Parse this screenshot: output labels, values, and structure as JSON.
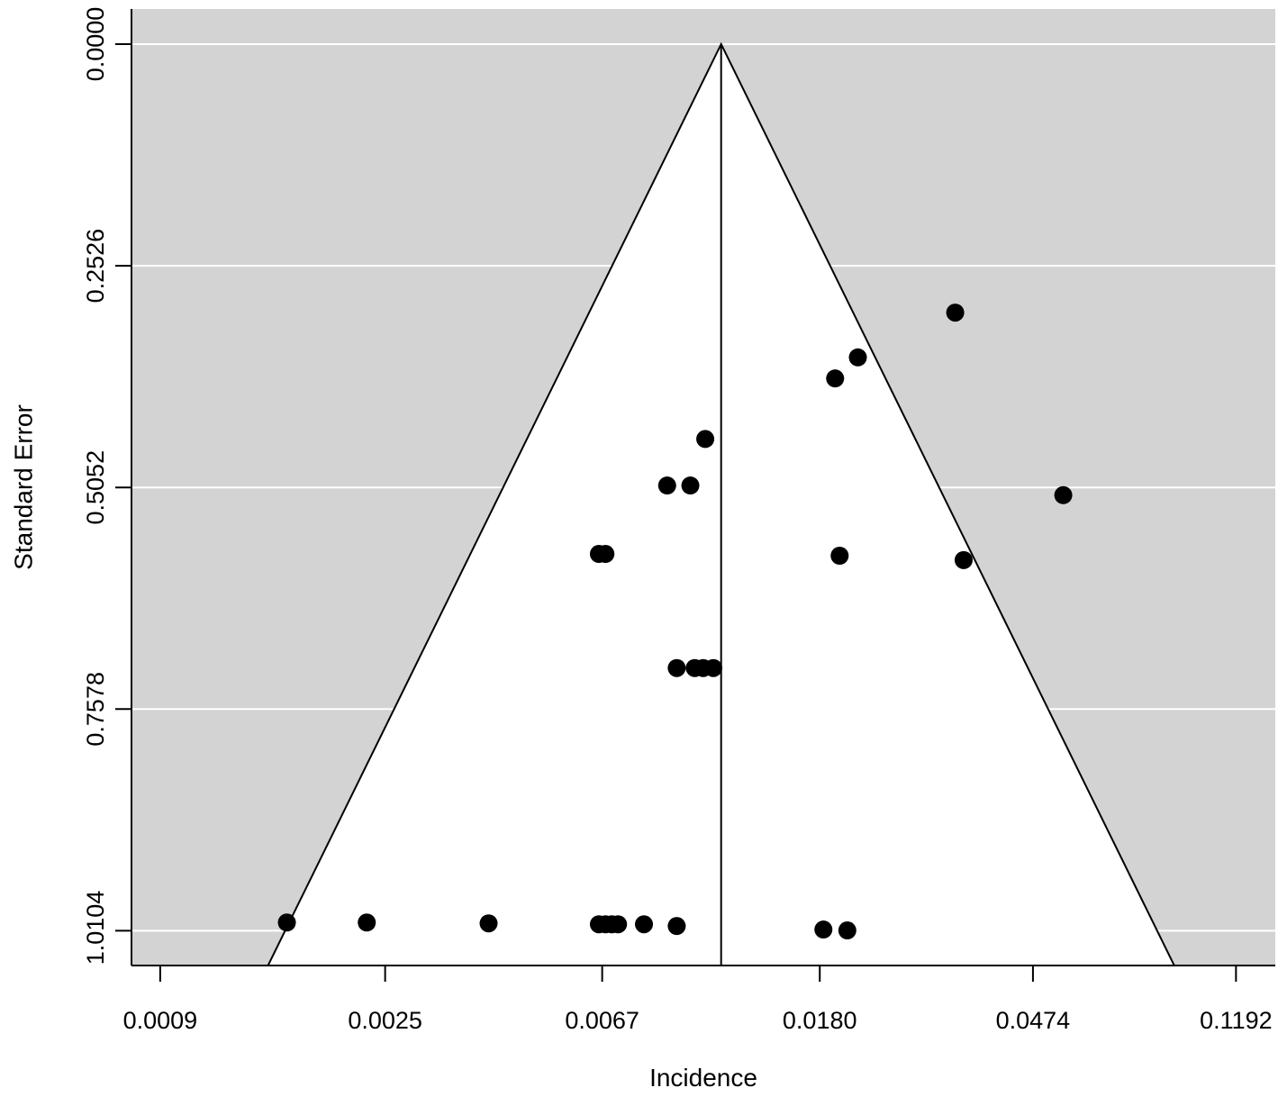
{
  "chart_data": {
    "type": "scatter",
    "subtype": "funnel",
    "title": "",
    "xlabel": "Incidence",
    "ylabel": "Standard Error",
    "x_scale": "log",
    "y_reversed": true,
    "x_ticks": [
      "0.0009",
      "0.0025",
      "0.0067",
      "0.0180",
      "0.0474",
      "0.1192"
    ],
    "x_tick_values": [
      0.0009,
      0.0025,
      0.0067,
      0.018,
      0.0474,
      0.1192
    ],
    "y_ticks": [
      "0.0000",
      "0.2526",
      "0.5052",
      "0.7578",
      "1.0104"
    ],
    "y_tick_values": [
      0,
      0.2526,
      0.5052,
      0.7578,
      1.0104
    ],
    "xlim": [
      0.00079,
      0.1425
    ],
    "ylim": [
      1.05,
      -0.04
    ],
    "pooled_estimate": 0.0115,
    "funnel_z": 1.96,
    "background_color": "#d3d3d3",
    "funnel_color": "#ffffff",
    "gridline_color": "#ffffff",
    "point_color": "#000000",
    "points": [
      {
        "x": 0.0333,
        "se": 0.306
      },
      {
        "x": 0.0214,
        "se": 0.357
      },
      {
        "x": 0.0193,
        "se": 0.381
      },
      {
        "x": 0.0107,
        "se": 0.45
      },
      {
        "x": 0.009,
        "se": 0.503
      },
      {
        "x": 0.01,
        "se": 0.503
      },
      {
        "x": 0.0544,
        "se": 0.514
      },
      {
        "x": 0.0066,
        "se": 0.581
      },
      {
        "x": 0.0068,
        "se": 0.581
      },
      {
        "x": 0.0197,
        "se": 0.583
      },
      {
        "x": 0.0346,
        "se": 0.588
      },
      {
        "x": 0.0094,
        "se": 0.711
      },
      {
        "x": 0.0102,
        "se": 0.711
      },
      {
        "x": 0.0106,
        "se": 0.711
      },
      {
        "x": 0.0111,
        "se": 0.711
      },
      {
        "x": 0.0016,
        "se": 1.001
      },
      {
        "x": 0.0023,
        "se": 1.001
      },
      {
        "x": 0.004,
        "se": 1.002
      },
      {
        "x": 0.0066,
        "se": 1.003
      },
      {
        "x": 0.0068,
        "se": 1.003
      },
      {
        "x": 0.007,
        "se": 1.003
      },
      {
        "x": 0.0072,
        "se": 1.003
      },
      {
        "x": 0.0081,
        "se": 1.003
      },
      {
        "x": 0.0094,
        "se": 1.005
      },
      {
        "x": 0.0183,
        "se": 1.009
      },
      {
        "x": 0.0204,
        "se": 1.01
      }
    ]
  }
}
